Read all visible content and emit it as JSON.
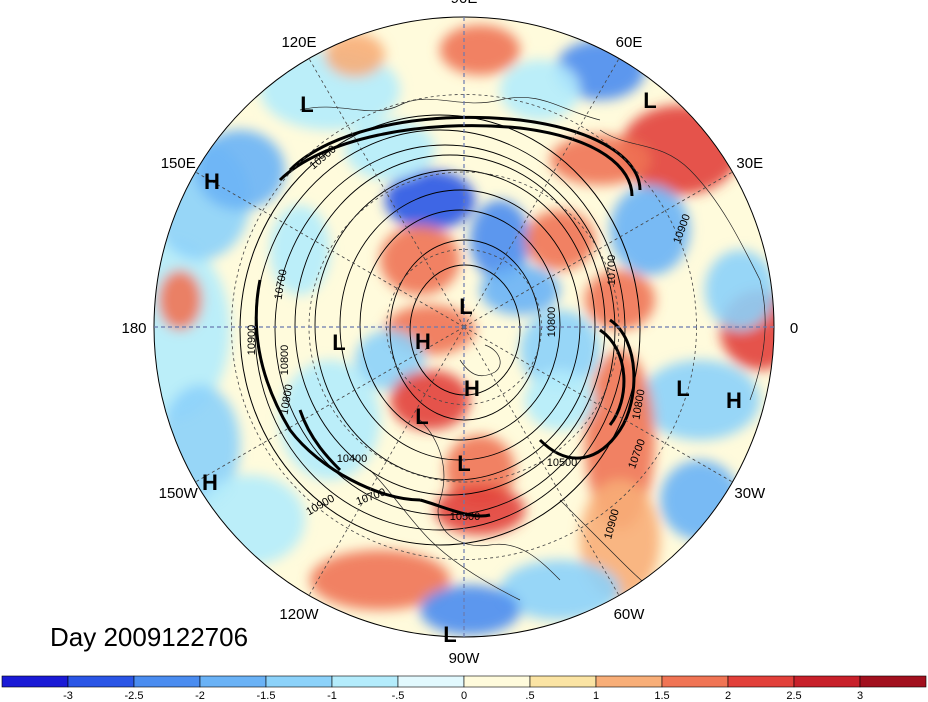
{
  "map": {
    "day_label": "Day 2009122706",
    "longitude_labels": [
      {
        "text": "90E",
        "deg": 90
      },
      {
        "text": "60E",
        "deg": 60
      },
      {
        "text": "30E",
        "deg": 30
      },
      {
        "text": "0",
        "deg": 0
      },
      {
        "text": "30W",
        "deg": -30
      },
      {
        "text": "60W",
        "deg": -60
      },
      {
        "text": "90W",
        "deg": -90
      },
      {
        "text": "120W",
        "deg": -120
      },
      {
        "text": "150W",
        "deg": -150
      },
      {
        "text": "180",
        "deg": 180
      },
      {
        "text": "150E",
        "deg": 150
      },
      {
        "text": "120E",
        "deg": 120
      }
    ],
    "pressure_centers": [
      "L",
      "L",
      "H",
      "L",
      "H",
      "L",
      "H",
      "L",
      "L",
      "H",
      "L",
      "H",
      "L",
      "H",
      "L"
    ],
    "contour_labels": [
      "10900",
      "10700",
      "10800",
      "10900",
      "10400",
      "10700",
      "10900",
      "10500",
      "10700",
      "10800",
      "10900",
      "10900",
      "10700",
      "10800",
      "10800",
      "10500"
    ]
  },
  "colorbar": {
    "tick_labels": [
      "-3",
      "-2.5",
      "-2",
      "-1.5",
      "-1",
      "-.5",
      "0",
      ".5",
      "1",
      "1.5",
      "2",
      "2.5",
      "3"
    ],
    "colors": [
      "#1a1ad6",
      "#2a55e6",
      "#4a8cf0",
      "#6ab2f6",
      "#8cd2fa",
      "#b4ecfc",
      "#e2f9fe",
      "#fffbdc",
      "#fbe4a4",
      "#f8ae78",
      "#f07454",
      "#e2403a",
      "#c8202a",
      "#a2101e"
    ]
  }
}
